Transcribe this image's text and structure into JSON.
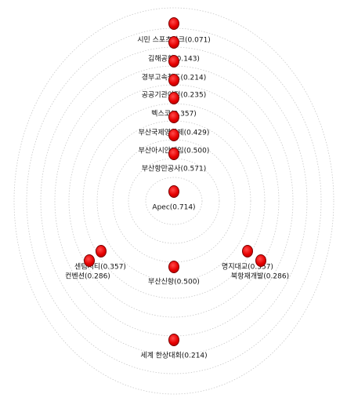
{
  "colors": {
    "node": "#e60000",
    "ring": "#c8c8c8",
    "text": "#111111"
  },
  "nodes": [
    {
      "id": "n1",
      "label": "시민 스포츠파크(0.071)"
    },
    {
      "id": "n2",
      "label": "김해공항(0.143)"
    },
    {
      "id": "n3",
      "label": "경부고속철도(0.214)"
    },
    {
      "id": "n4",
      "label": "공공기관이전(0.235)"
    },
    {
      "id": "n5",
      "label": "벡스코(0.357)"
    },
    {
      "id": "n6",
      "label": "부산국제영화제(0.429)"
    },
    {
      "id": "n7",
      "label": "부산아시안게임(0.500)"
    },
    {
      "id": "n8",
      "label": "부산항만공사(0.571)"
    },
    {
      "id": "n9",
      "label": "Apec(0.714)"
    },
    {
      "id": "n10",
      "label": "센텀시티(0.357)"
    },
    {
      "id": "n11",
      "label": "컨벤션(0.286)"
    },
    {
      "id": "n12",
      "label": "부산신항(0.500)"
    },
    {
      "id": "n13",
      "label": "명지대교(0.357)"
    },
    {
      "id": "n14",
      "label": "북항재개발(0.286)"
    },
    {
      "id": "n15",
      "label": "세계 한상대회(0.214)"
    }
  ]
}
